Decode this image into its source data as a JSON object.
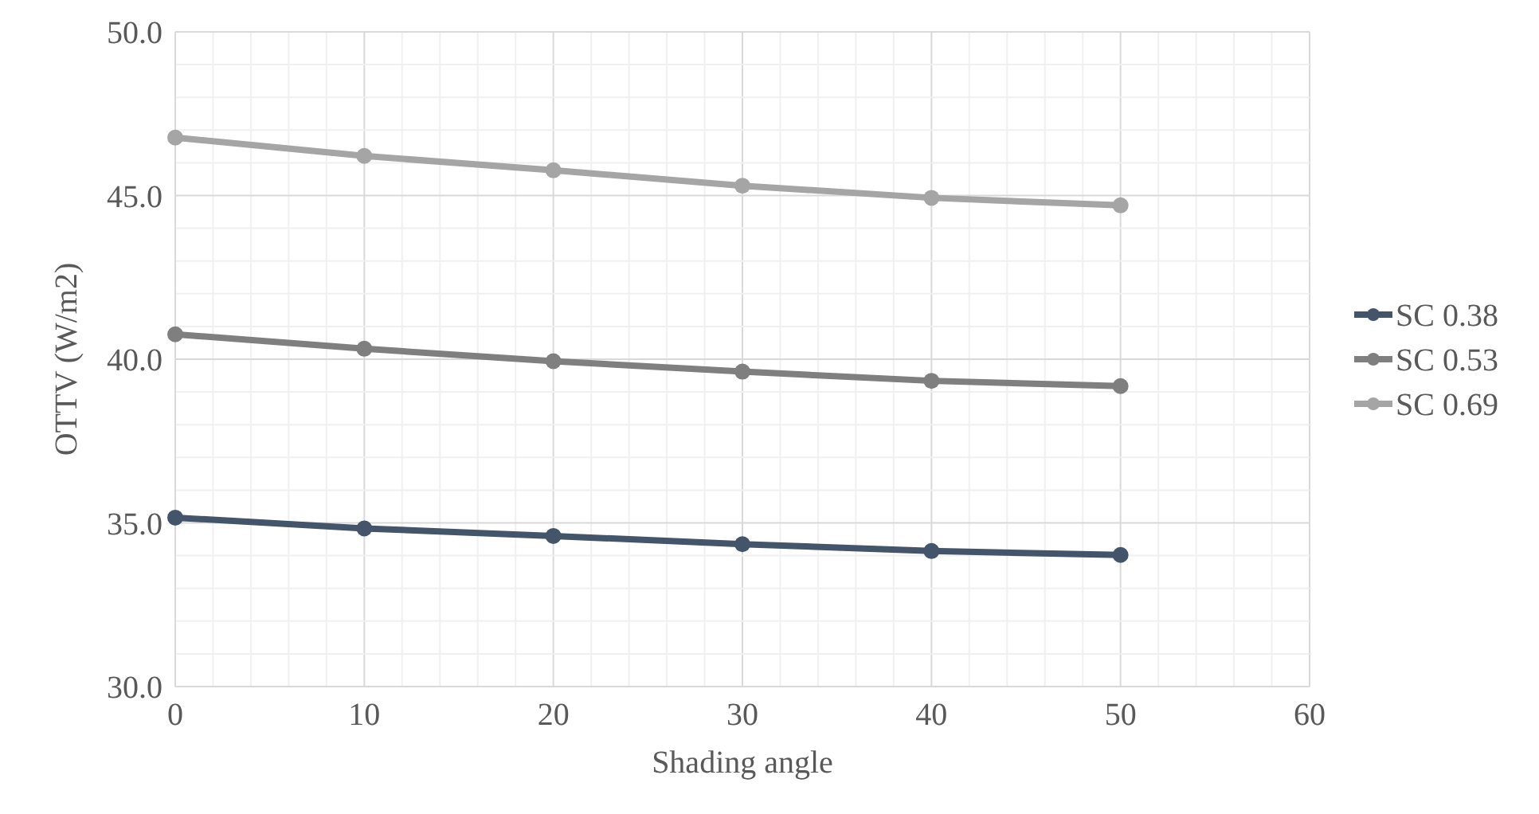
{
  "chart_data": {
    "type": "line",
    "xlabel": "Shading angle",
    "ylabel": "OTTV (W/m2)",
    "x": [
      0,
      10,
      20,
      30,
      40,
      50
    ],
    "series": [
      {
        "name": "SC 0.38",
        "color": "#44546a",
        "values": [
          35.16,
          34.83,
          34.6,
          34.35,
          34.14,
          34.02
        ]
      },
      {
        "name": "SC 0.53",
        "color": "#7f7f7f",
        "values": [
          40.76,
          40.32,
          39.94,
          39.62,
          39.34,
          39.18
        ]
      },
      {
        "name": "SC 0.69",
        "color": "#a5a5a5",
        "values": [
          46.77,
          46.21,
          45.77,
          45.3,
          44.93,
          44.7
        ]
      }
    ],
    "xlim": [
      0,
      60
    ],
    "xticks": [
      0,
      {
        "value": 2,
        "label": null
      },
      {
        "value": 4,
        "label": null
      },
      {
        "value": 6,
        "label": null
      },
      {
        "value": 8,
        "label": null
      },
      10,
      {
        "value": 12,
        "label": null
      },
      {
        "value": 14,
        "label": null
      },
      {
        "value": 16,
        "label": null
      },
      {
        "value": 18,
        "label": null
      },
      20,
      {
        "value": 22,
        "label": null
      },
      {
        "value": 24,
        "label": null
      },
      {
        "value": 26,
        "label": null
      },
      {
        "value": 28,
        "label": null
      },
      30,
      {
        "value": 32,
        "label": null
      },
      {
        "value": 34,
        "label": null
      },
      {
        "value": 36,
        "label": null
      },
      {
        "value": 38,
        "label": null
      },
      40,
      {
        "value": 42,
        "label": null
      },
      {
        "value": 44,
        "label": null
      },
      {
        "value": 46,
        "label": null
      },
      {
        "value": 48,
        "label": null
      },
      50,
      {
        "value": 52,
        "label": null
      },
      {
        "value": 54,
        "label": null
      },
      {
        "value": 56,
        "label": null
      },
      {
        "value": 58,
        "label": null
      },
      60
    ],
    "ylim": [
      30,
      50
    ],
    "yticks": [
      {
        "value": 30,
        "label": "30.0"
      },
      {
        "value": 31,
        "label": null
      },
      {
        "value": 32,
        "label": null
      },
      {
        "value": 33,
        "label": null
      },
      {
        "value": 34,
        "label": null
      },
      {
        "value": 35,
        "label": "35.0"
      },
      {
        "value": 36,
        "label": null
      },
      {
        "value": 37,
        "label": null
      },
      {
        "value": 38,
        "label": null
      },
      {
        "value": 39,
        "label": null
      },
      {
        "value": 40,
        "label": "40.0"
      },
      {
        "value": 41,
        "label": null
      },
      {
        "value": 42,
        "label": null
      },
      {
        "value": 43,
        "label": null
      },
      {
        "value": 44,
        "label": null
      },
      {
        "value": 45,
        "label": "45.0"
      },
      {
        "value": 46,
        "label": null
      },
      {
        "value": 47,
        "label": null
      },
      {
        "value": 48,
        "label": null
      },
      {
        "value": 49,
        "label": null
      },
      {
        "value": 50,
        "label": "50.0"
      }
    ],
    "grid": true,
    "legend": "right",
    "marker": "circle",
    "line_style": "solid"
  }
}
